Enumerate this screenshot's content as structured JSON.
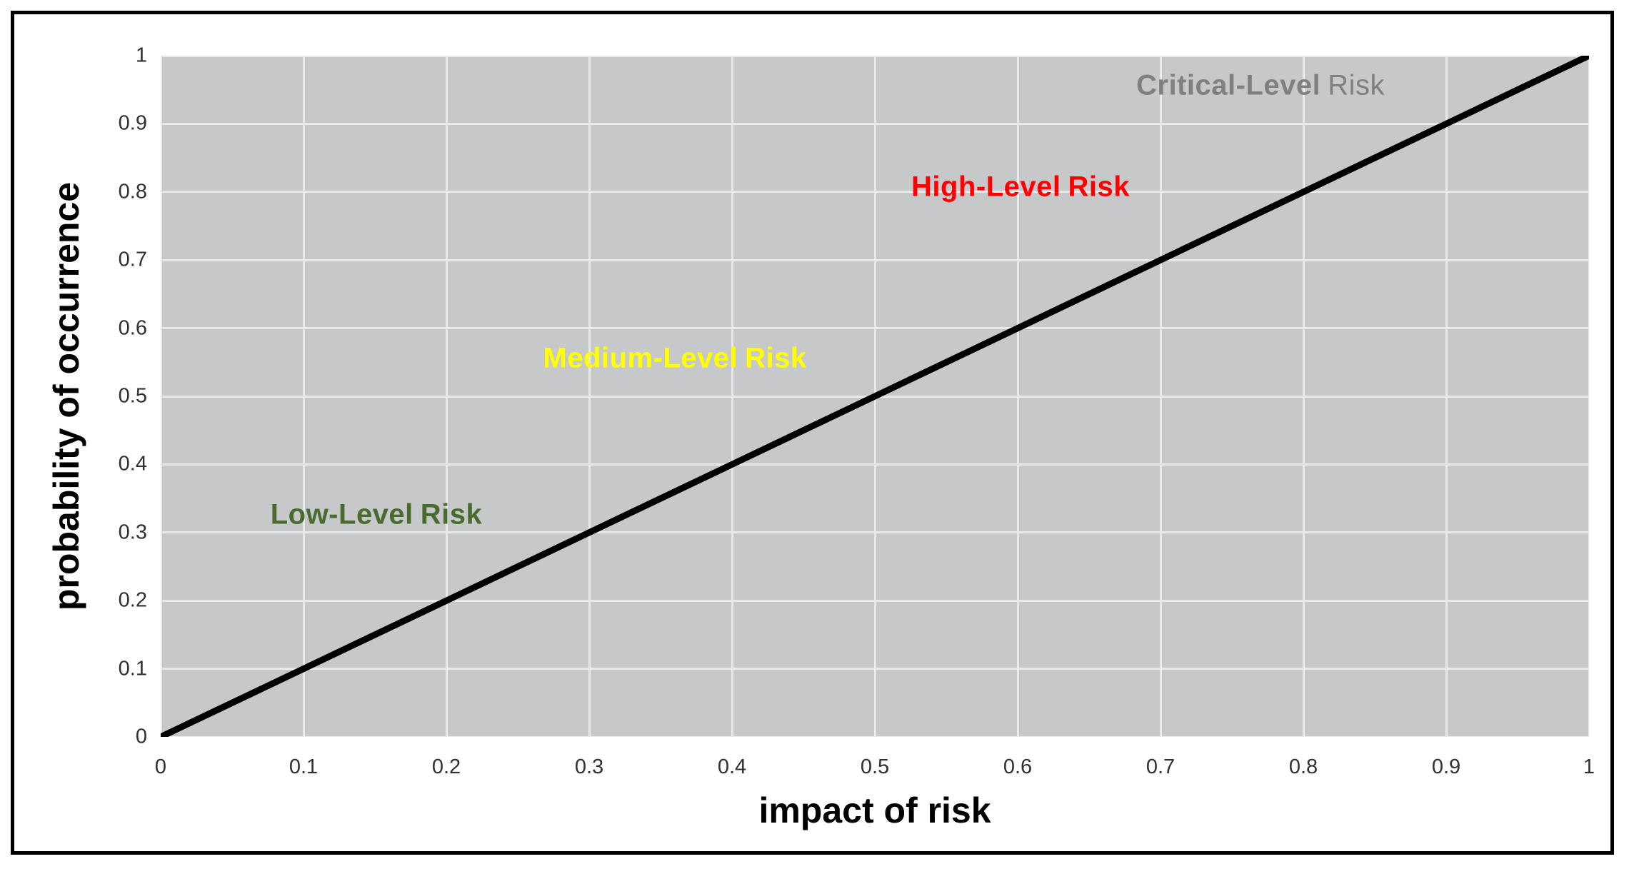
{
  "chart_data": {
    "type": "line",
    "title": "",
    "xlabel": "impact of risk",
    "ylabel": "probability of occurrence",
    "x": [
      0,
      1
    ],
    "y": [
      0,
      1
    ],
    "xlim": [
      0,
      1
    ],
    "ylim": [
      0,
      1
    ],
    "x_ticks": [
      "0",
      "0.1",
      "0.2",
      "0.3",
      "0.4",
      "0.5",
      "0.6",
      "0.7",
      "0.8",
      "0.9",
      "1"
    ],
    "y_ticks": [
      "0",
      "0.1",
      "0.2",
      "0.3",
      "0.4",
      "0.5",
      "0.6",
      "0.7",
      "0.8",
      "0.9",
      "1"
    ],
    "grid": true,
    "legend": "none",
    "line_color": "#000000",
    "line_width": 9,
    "plot_background": "#c7c8ca",
    "grid_color": "#e9e9e9",
    "annotations": [
      {
        "text_main": "Low-Level",
        "text_suffix": "Risk",
        "x": 0.151,
        "y": 0.326,
        "color": "#4a6b2f",
        "suffix_light": false
      },
      {
        "text_main": "Medium-Level",
        "text_suffix": "Risk",
        "x": 0.36,
        "y": 0.556,
        "color": "#ffff00",
        "suffix_light": false
      },
      {
        "text_main": "High-Level",
        "text_suffix": "Risk",
        "x": 0.602,
        "y": 0.807,
        "color": "#ff0000",
        "suffix_light": false
      },
      {
        "text_main": "Critical-Level",
        "text_suffix": "Risk",
        "x": 0.77,
        "y": 0.956,
        "color": "#808080",
        "suffix_light": true
      }
    ]
  }
}
